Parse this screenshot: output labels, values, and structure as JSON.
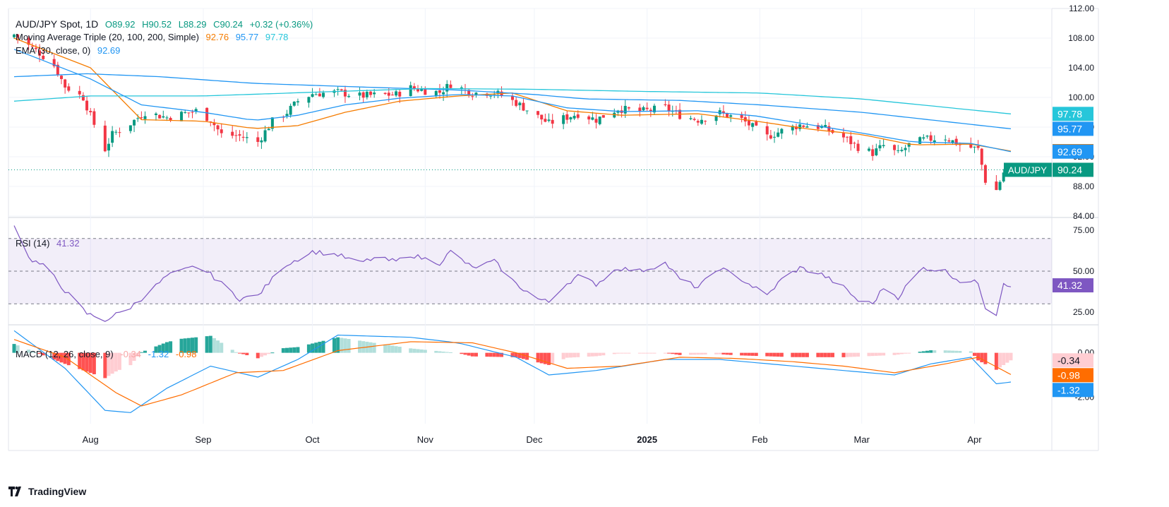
{
  "header": {
    "symbol": "AUD/JPY Spot, 1D",
    "ohlc": {
      "open": "O89.92",
      "high": "H90.52",
      "low": "L88.29",
      "close": "C90.24",
      "change": "+0.32 (+0.36%)"
    },
    "ma_label": "Moving Average Triple (20, 100, 200, Simple)",
    "ma_values": [
      "92.76",
      "95.77",
      "97.78"
    ],
    "ema_label": "EMA (30, close, 0)",
    "ema_value": "92.69",
    "rsi_label": "RSI (14)",
    "rsi_value": "41.32",
    "macd_label": "MACD (12, 26, close, 9)",
    "macd_values": [
      "-0.34",
      "-1.32",
      "-0.98"
    ]
  },
  "brand": "TradingView",
  "colors": {
    "up": "#089981",
    "down": "#f23645",
    "ma20": "#f57c00",
    "ma100": "#2196f3",
    "ma200": "#26c6da",
    "ema": "#2196f3",
    "rsi": "#7e57c2",
    "macd": "#2196f3",
    "signal": "#ff6d00",
    "hist_up_strong": "#26a69a",
    "hist_up_weak": "#b2dfdb",
    "hist_dn_strong": "#ff5252",
    "hist_dn_weak": "#ffcdd2",
    "grid": "#f0f3fa",
    "axis_text": "#131722"
  },
  "chart_data": [
    {
      "type": "candlestick",
      "title": "AUD/JPY Spot, 1D",
      "x_range": [
        "2024-07-11",
        "2025-04-11"
      ],
      "x_ticks": [
        "Aug",
        "Sep",
        "Oct",
        "Nov",
        "Dec",
        "2025",
        "Feb",
        "Mar",
        "Apr"
      ],
      "ylim": [
        84,
        112
      ],
      "y_ticks": [
        "112.00",
        "108.00",
        "104.00",
        "100.00",
        "96.00",
        "92.00",
        "88.00",
        "84.00"
      ],
      "last_price": {
        "label": "AUD/JPY",
        "value": "90.24"
      },
      "price_labels": [
        {
          "value": "97.78",
          "series": "ma200"
        },
        {
          "value": "95.77",
          "series": "ma100"
        },
        {
          "value": "92.76",
          "series": "ma20"
        },
        {
          "value": "92.69",
          "series": "ema"
        }
      ],
      "close_anchors": [
        [
          "2024-07-11",
          108.5
        ],
        [
          "2024-07-15",
          107.0
        ],
        [
          "2024-07-18",
          106.0
        ],
        [
          "2024-07-22",
          104.3
        ],
        [
          "2024-07-25",
          101.5
        ],
        [
          "2024-07-30",
          100.0
        ],
        [
          "2024-08-01",
          97.5
        ],
        [
          "2024-08-05",
          93.0
        ],
        [
          "2024-08-07",
          95.0
        ],
        [
          "2024-08-12",
          96.5
        ],
        [
          "2024-08-16",
          98.0
        ],
        [
          "2024-08-22",
          97.3
        ],
        [
          "2024-08-30",
          98.2
        ],
        [
          "2024-09-03",
          97.0
        ],
        [
          "2024-09-06",
          95.0
        ],
        [
          "2024-09-11",
          94.8
        ],
        [
          "2024-09-16",
          94.0
        ],
        [
          "2024-09-20",
          96.8
        ],
        [
          "2024-09-24",
          98.0
        ],
        [
          "2024-09-27",
          99.5
        ],
        [
          "2024-10-01",
          100.5
        ],
        [
          "2024-10-08",
          100.7
        ],
        [
          "2024-10-14",
          100.2
        ],
        [
          "2024-10-18",
          100.3
        ],
        [
          "2024-10-24",
          100.4
        ],
        [
          "2024-10-28",
          101.3
        ],
        [
          "2024-11-01",
          100.9
        ],
        [
          "2024-11-05",
          100.7
        ],
        [
          "2024-11-08",
          101.8
        ],
        [
          "2024-11-14",
          100.6
        ],
        [
          "2024-11-20",
          100.7
        ],
        [
          "2024-11-26",
          99.3
        ],
        [
          "2024-12-02",
          97.4
        ],
        [
          "2024-12-05",
          96.5
        ],
        [
          "2024-12-09",
          97.2
        ],
        [
          "2024-12-13",
          97.8
        ],
        [
          "2024-12-18",
          97.0
        ],
        [
          "2024-12-24",
          98.5
        ],
        [
          "2024-12-30",
          98.1
        ],
        [
          "2025-01-06",
          98.6
        ],
        [
          "2025-01-10",
          97.6
        ],
        [
          "2025-01-15",
          97.0
        ],
        [
          "2025-01-21",
          97.9
        ],
        [
          "2025-01-27",
          97.0
        ],
        [
          "2025-02-03",
          94.7
        ],
        [
          "2025-02-07",
          95.5
        ],
        [
          "2025-02-12",
          96.3
        ],
        [
          "2025-02-18",
          96.0
        ],
        [
          "2025-02-24",
          94.6
        ],
        [
          "2025-02-28",
          93.3
        ],
        [
          "2025-03-04",
          92.5
        ],
        [
          "2025-03-07",
          93.5
        ],
        [
          "2025-03-11",
          92.4
        ],
        [
          "2025-03-14",
          93.6
        ],
        [
          "2025-03-18",
          94.3
        ],
        [
          "2025-03-24",
          94.6
        ],
        [
          "2025-03-28",
          93.6
        ],
        [
          "2025-04-02",
          93.0
        ],
        [
          "2025-04-04",
          88.8
        ],
        [
          "2025-04-07",
          87.5
        ],
        [
          "2025-04-09",
          89.9
        ],
        [
          "2025-04-11",
          90.24
        ]
      ],
      "series": [
        {
          "name": "MA20",
          "anchors": [
            [
              "2024-07-11",
              108.0
            ],
            [
              "2024-08-01",
              104.0
            ],
            [
              "2024-08-15",
              97.0
            ],
            [
              "2024-09-01",
              96.8
            ],
            [
              "2024-09-15",
              95.8
            ],
            [
              "2024-09-27",
              96.2
            ],
            [
              "2024-10-10",
              98.0
            ],
            [
              "2024-10-25",
              99.5
            ],
            [
              "2024-11-10",
              100.2
            ],
            [
              "2024-11-25",
              100.6
            ],
            [
              "2024-12-10",
              98.2
            ],
            [
              "2024-12-25",
              97.6
            ],
            [
              "2025-01-15",
              97.8
            ],
            [
              "2025-01-31",
              96.8
            ],
            [
              "2025-02-15",
              95.7
            ],
            [
              "2025-03-01",
              95.0
            ],
            [
              "2025-03-15",
              93.6
            ],
            [
              "2025-03-31",
              93.7
            ],
            [
              "2025-04-11",
              92.76
            ]
          ]
        },
        {
          "name": "MA100",
          "anchors": [
            [
              "2024-07-11",
              102.8
            ],
            [
              "2024-07-31",
              103.2
            ],
            [
              "2024-08-20",
              102.8
            ],
            [
              "2024-09-15",
              101.9
            ],
            [
              "2024-10-15",
              101.4
            ],
            [
              "2024-11-10",
              101.0
            ],
            [
              "2024-12-01",
              100.4
            ],
            [
              "2024-12-15",
              99.8
            ],
            [
              "2025-01-10",
              99.6
            ],
            [
              "2025-02-01",
              99.0
            ],
            [
              "2025-03-01",
              98.0
            ],
            [
              "2025-04-11",
              95.77
            ]
          ]
        },
        {
          "name": "MA200",
          "anchors": [
            [
              "2024-07-11",
              99.5
            ],
            [
              "2024-08-01",
              100.2
            ],
            [
              "2024-09-01",
              100.2
            ],
            [
              "2024-10-01",
              100.7
            ],
            [
              "2024-11-01",
              101.2
            ],
            [
              "2024-12-01",
              101.1
            ],
            [
              "2025-01-01",
              100.8
            ],
            [
              "2025-02-01",
              100.6
            ],
            [
              "2025-03-01",
              99.8
            ],
            [
              "2025-04-11",
              97.78
            ]
          ]
        },
        {
          "name": "EMA30",
          "anchors": [
            [
              "2024-07-11",
              106.5
            ],
            [
              "2024-08-01",
              102.5
            ],
            [
              "2024-08-15",
              99.0
            ],
            [
              "2024-09-01",
              98.0
            ],
            [
              "2024-09-15",
              96.9
            ],
            [
              "2024-09-27",
              97.6
            ],
            [
              "2024-10-10",
              99.0
            ],
            [
              "2024-10-25",
              99.9
            ],
            [
              "2024-11-10",
              100.4
            ],
            [
              "2024-11-25",
              100.2
            ],
            [
              "2024-12-10",
              98.6
            ],
            [
              "2024-12-25",
              98.1
            ],
            [
              "2025-01-15",
              98.2
            ],
            [
              "2025-01-31",
              97.5
            ],
            [
              "2025-02-15",
              96.3
            ],
            [
              "2025-03-01",
              95.2
            ],
            [
              "2025-03-15",
              94.0
            ],
            [
              "2025-03-31",
              93.8
            ],
            [
              "2025-04-11",
              92.69
            ]
          ]
        }
      ]
    },
    {
      "type": "line",
      "title": "RSI (14)",
      "ylim": [
        18,
        82
      ],
      "y_ticks": [
        "75.00",
        "50.00",
        "25.00"
      ],
      "bands": [
        70,
        50,
        30
      ],
      "series": [
        {
          "name": "RSI",
          "anchors": [
            [
              "2024-07-11",
              79
            ],
            [
              "2024-07-15",
              58
            ],
            [
              "2024-07-20",
              52
            ],
            [
              "2024-07-25",
              38
            ],
            [
              "2024-07-31",
              24
            ],
            [
              "2024-08-05",
              20
            ],
            [
              "2024-08-12",
              28
            ],
            [
              "2024-08-16",
              35
            ],
            [
              "2024-08-22",
              47
            ],
            [
              "2024-08-30",
              53
            ],
            [
              "2024-09-03",
              48
            ],
            [
              "2024-09-11",
              33
            ],
            [
              "2024-09-16",
              35
            ],
            [
              "2024-09-23",
              53
            ],
            [
              "2024-10-01",
              62
            ],
            [
              "2024-10-08",
              60
            ],
            [
              "2024-10-14",
              55
            ],
            [
              "2024-10-18",
              58
            ],
            [
              "2024-10-24",
              56
            ],
            [
              "2024-10-28",
              60
            ],
            [
              "2024-11-05",
              55
            ],
            [
              "2024-11-08",
              62
            ],
            [
              "2024-11-14",
              52
            ],
            [
              "2024-11-20",
              56
            ],
            [
              "2024-11-26",
              42
            ],
            [
              "2024-12-02",
              33
            ],
            [
              "2024-12-05",
              31
            ],
            [
              "2024-12-09",
              41
            ],
            [
              "2024-12-13",
              47
            ],
            [
              "2024-12-18",
              42
            ],
            [
              "2024-12-24",
              52
            ],
            [
              "2024-12-30",
              50
            ],
            [
              "2025-01-06",
              55
            ],
            [
              "2025-01-10",
              45
            ],
            [
              "2025-01-15",
              40
            ],
            [
              "2025-01-21",
              52
            ],
            [
              "2025-01-27",
              45
            ],
            [
              "2025-02-03",
              35
            ],
            [
              "2025-02-07",
              45
            ],
            [
              "2025-02-12",
              52
            ],
            [
              "2025-02-18",
              48
            ],
            [
              "2025-02-24",
              40
            ],
            [
              "2025-02-28",
              32
            ],
            [
              "2025-03-04",
              30
            ],
            [
              "2025-03-07",
              40
            ],
            [
              "2025-03-11",
              34
            ],
            [
              "2025-03-14",
              43
            ],
            [
              "2025-03-18",
              52
            ],
            [
              "2025-03-24",
              50
            ],
            [
              "2025-03-28",
              44
            ],
            [
              "2025-04-02",
              43
            ],
            [
              "2025-04-04",
              28
            ],
            [
              "2025-04-07",
              24
            ],
            [
              "2025-04-09",
              43
            ],
            [
              "2025-04-11",
              41.32
            ]
          ]
        }
      ]
    },
    {
      "type": "line",
      "title": "MACD (12, 26, close, 9)",
      "ylim": [
        -3.2,
        1.2
      ],
      "y_ticks": [
        "0.00",
        "-2.00"
      ],
      "series": [
        {
          "name": "MACD",
          "anchors": [
            [
              "2024-07-11",
              1.0
            ],
            [
              "2024-07-25",
              -0.7
            ],
            [
              "2024-08-05",
              -2.6
            ],
            [
              "2024-08-12",
              -2.7
            ],
            [
              "2024-08-22",
              -1.6
            ],
            [
              "2024-09-03",
              -0.6
            ],
            [
              "2024-09-16",
              -1.1
            ],
            [
              "2024-09-27",
              -0.3
            ],
            [
              "2024-10-08",
              0.8
            ],
            [
              "2024-10-28",
              0.7
            ],
            [
              "2024-11-10",
              0.45
            ],
            [
              "2024-11-26",
              -0.2
            ],
            [
              "2024-12-05",
              -1.0
            ],
            [
              "2024-12-18",
              -0.8
            ],
            [
              "2025-01-06",
              -0.3
            ],
            [
              "2025-01-21",
              -0.3
            ],
            [
              "2025-02-07",
              -0.55
            ],
            [
              "2025-02-24",
              -0.8
            ],
            [
              "2025-03-10",
              -1.0
            ],
            [
              "2025-03-20",
              -0.5
            ],
            [
              "2025-03-31",
              -0.2
            ],
            [
              "2025-04-07",
              -1.4
            ],
            [
              "2025-04-11",
              -1.32
            ]
          ]
        },
        {
          "name": "Signal",
          "anchors": [
            [
              "2024-07-11",
              0.6
            ],
            [
              "2024-07-25",
              -0.2
            ],
            [
              "2024-08-08",
              -1.8
            ],
            [
              "2024-08-15",
              -2.4
            ],
            [
              "2024-08-26",
              -1.9
            ],
            [
              "2024-09-10",
              -0.9
            ],
            [
              "2024-09-23",
              -0.8
            ],
            [
              "2024-10-08",
              0.1
            ],
            [
              "2024-10-28",
              0.5
            ],
            [
              "2024-11-14",
              0.45
            ],
            [
              "2024-11-26",
              0.0
            ],
            [
              "2024-12-10",
              -0.7
            ],
            [
              "2024-12-25",
              -0.6
            ],
            [
              "2025-01-10",
              -0.2
            ],
            [
              "2025-01-25",
              -0.25
            ],
            [
              "2025-02-10",
              -0.4
            ],
            [
              "2025-02-24",
              -0.6
            ],
            [
              "2025-03-10",
              -0.9
            ],
            [
              "2025-03-24",
              -0.5
            ],
            [
              "2025-04-02",
              -0.2
            ],
            [
              "2025-04-11",
              -0.98
            ]
          ]
        }
      ]
    }
  ]
}
